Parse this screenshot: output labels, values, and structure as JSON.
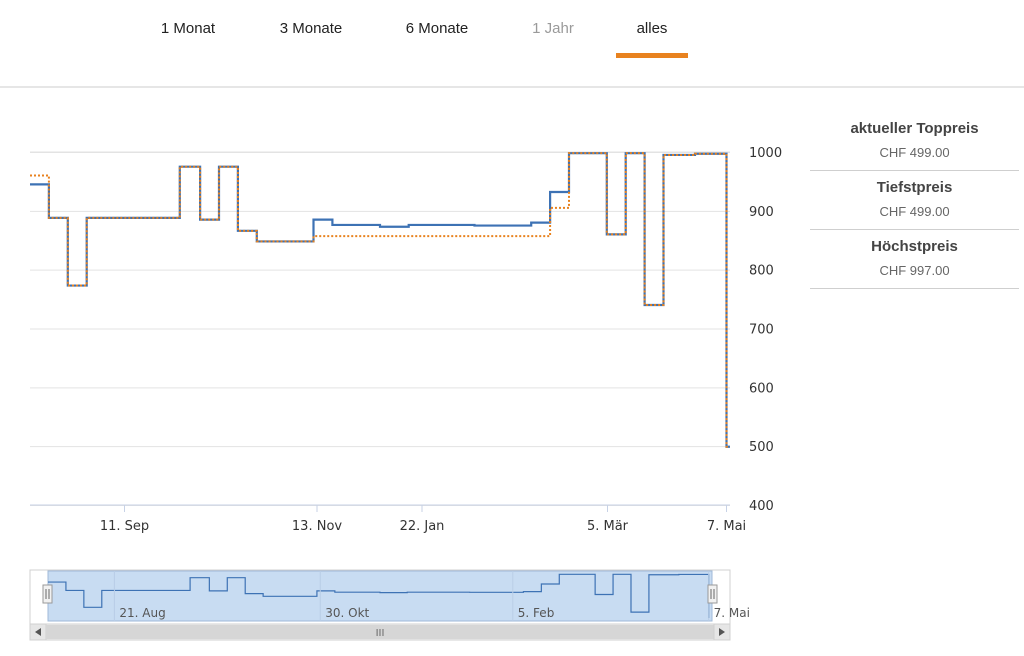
{
  "tabs": [
    {
      "label": "1 Monat",
      "state": "normal"
    },
    {
      "label": "3 Monate",
      "state": "normal"
    },
    {
      "label": "6 Monate",
      "state": "normal"
    },
    {
      "label": "1 Jahr",
      "state": "disabled"
    },
    {
      "label": "alles",
      "state": "active"
    }
  ],
  "colors": {
    "accent": "#e8821f",
    "series_blue": "#3d72b4",
    "series_orange": "#e8821f",
    "navigator_fill": "#c8dcf2"
  },
  "chart_data": {
    "type": "line",
    "step": true,
    "ylim": [
      400,
      1000
    ],
    "y_ticks": [
      1000,
      900,
      800,
      700,
      600,
      500,
      400
    ],
    "x_tick_labels": [
      "11. Sep",
      "13. Nov",
      "22. Jan",
      "5. Mär",
      "7. Mai"
    ],
    "grid": true,
    "series": [
      {
        "color": "#3d72b4",
        "style": "solid",
        "points": [
          {
            "x": 0.0,
            "y": 945
          },
          {
            "x": 0.027,
            "y": 888
          },
          {
            "x": 0.054,
            "y": 773
          },
          {
            "x": 0.081,
            "y": 888
          },
          {
            "x": 0.214,
            "y": 975
          },
          {
            "x": 0.243,
            "y": 885
          },
          {
            "x": 0.27,
            "y": 975
          },
          {
            "x": 0.297,
            "y": 866
          },
          {
            "x": 0.324,
            "y": 848
          },
          {
            "x": 0.405,
            "y": 885
          },
          {
            "x": 0.432,
            "y": 876
          },
          {
            "x": 0.5,
            "y": 873
          },
          {
            "x": 0.541,
            "y": 876
          },
          {
            "x": 0.635,
            "y": 875
          },
          {
            "x": 0.716,
            "y": 880
          },
          {
            "x": 0.743,
            "y": 932
          },
          {
            "x": 0.77,
            "y": 998
          },
          {
            "x": 0.824,
            "y": 860
          },
          {
            "x": 0.851,
            "y": 998
          },
          {
            "x": 0.878,
            "y": 740
          },
          {
            "x": 0.905,
            "y": 995
          },
          {
            "x": 0.95,
            "y": 997
          },
          {
            "x": 0.995,
            "y": 499
          }
        ]
      },
      {
        "color": "#e8821f",
        "style": "dotted",
        "points": [
          {
            "x": 0.0,
            "y": 960
          },
          {
            "x": 0.027,
            "y": 888
          },
          {
            "x": 0.054,
            "y": 773
          },
          {
            "x": 0.081,
            "y": 888
          },
          {
            "x": 0.214,
            "y": 975
          },
          {
            "x": 0.243,
            "y": 885
          },
          {
            "x": 0.27,
            "y": 975
          },
          {
            "x": 0.297,
            "y": 866
          },
          {
            "x": 0.324,
            "y": 848
          },
          {
            "x": 0.405,
            "y": 857
          },
          {
            "x": 0.716,
            "y": 857
          },
          {
            "x": 0.743,
            "y": 905
          },
          {
            "x": 0.77,
            "y": 998
          },
          {
            "x": 0.824,
            "y": 860
          },
          {
            "x": 0.851,
            "y": 998
          },
          {
            "x": 0.878,
            "y": 740
          },
          {
            "x": 0.905,
            "y": 995
          },
          {
            "x": 0.95,
            "y": 997
          },
          {
            "x": 0.995,
            "y": 499
          }
        ]
      }
    ],
    "navigator": {
      "x_tick_labels": [
        "21. Aug",
        "30. Okt",
        "5. Feb",
        "7. Mai"
      ],
      "scrollbar_grip": "III"
    }
  },
  "side_panel": {
    "items": [
      {
        "title": "aktueller Toppreis",
        "value": "CHF 499.00"
      },
      {
        "title": "Tiefstpreis",
        "value": "CHF 499.00"
      },
      {
        "title": "Höchstpreis",
        "value": "CHF 997.00"
      }
    ]
  }
}
